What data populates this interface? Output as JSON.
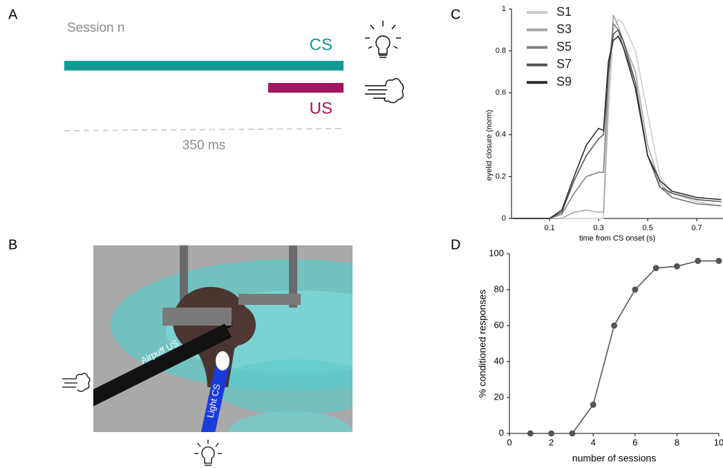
{
  "panel_labels": [
    "A",
    "B",
    "C",
    "D"
  ],
  "timeline": {
    "session_label": "Session n",
    "cs_label": "CS",
    "us_label": "US",
    "duration_label": "350 ms"
  },
  "photo": {
    "airpuff_label": "Airpuff US",
    "light_label": "Light CS"
  },
  "chart_data": [
    {
      "type": "line",
      "x_label": "time from CS onset (s)",
      "y_label": "eyelid closure (norm)",
      "x": [
        -0.05,
        0,
        0.05,
        0.1,
        0.15,
        0.2,
        0.25,
        0.3,
        0.32,
        0.34,
        0.36,
        0.38,
        0.4,
        0.45,
        0.5,
        0.55,
        0.6,
        0.7,
        0.8
      ],
      "series": [
        {
          "name": "S1",
          "color": "#cccccc",
          "values": [
            0,
            0,
            0,
            0,
            0,
            0,
            0,
            0,
            0,
            0.5,
            0.9,
            0.95,
            0.93,
            0.8,
            0.5,
            0.2,
            0.12,
            0.08,
            0.06
          ]
        },
        {
          "name": "S3",
          "color": "#a6a6a6",
          "values": [
            0,
            0,
            0,
            0,
            0,
            0.03,
            0.04,
            0.03,
            0.03,
            0.6,
            0.97,
            0.92,
            0.85,
            0.7,
            0.35,
            0.17,
            0.1,
            0.07,
            0.06
          ]
        },
        {
          "name": "S5",
          "color": "#808080",
          "values": [
            0,
            0,
            0,
            0,
            0.02,
            0.12,
            0.2,
            0.22,
            0.22,
            0.7,
            0.93,
            0.9,
            0.82,
            0.65,
            0.3,
            0.15,
            0.1,
            0.07,
            0.06
          ]
        },
        {
          "name": "S7",
          "color": "#555555",
          "values": [
            0,
            0,
            0,
            0,
            0.03,
            0.18,
            0.3,
            0.38,
            0.4,
            0.7,
            0.88,
            0.9,
            0.85,
            0.65,
            0.3,
            0.15,
            0.12,
            0.09,
            0.08
          ]
        },
        {
          "name": "S9",
          "color": "#2b2b2b",
          "values": [
            0,
            0,
            0,
            0,
            0.04,
            0.2,
            0.35,
            0.43,
            0.42,
            0.75,
            0.85,
            0.87,
            0.82,
            0.62,
            0.3,
            0.18,
            0.13,
            0.1,
            0.09
          ]
        }
      ],
      "xlim": [
        -0.055,
        0.807
      ],
      "ylim": [
        0,
        1
      ],
      "xticks": [
        0.1,
        0.3,
        0.5,
        0.7
      ],
      "yticks": [
        0,
        0.2,
        0.4,
        0.6,
        0.8,
        1
      ],
      "legend": "upper left"
    },
    {
      "type": "line",
      "x_label": "number of sessions",
      "y_label": "% conditioned responses",
      "x": [
        1,
        2,
        3,
        4,
        5,
        6,
        7,
        8,
        9,
        10
      ],
      "series": [
        {
          "color": "#555555",
          "values": [
            0,
            0,
            0,
            16,
            60,
            80,
            92,
            93,
            96,
            96
          ]
        }
      ],
      "xlim": [
        0,
        10
      ],
      "ylim": [
        0,
        100
      ],
      "xticks": [
        0,
        2,
        4,
        6,
        8,
        10
      ],
      "yticks": [
        0,
        20,
        40,
        60,
        80,
        100
      ],
      "marker": "circle"
    }
  ]
}
